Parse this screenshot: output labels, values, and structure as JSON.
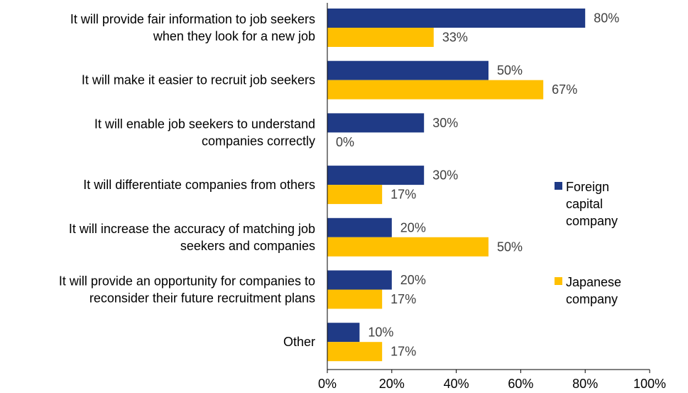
{
  "chart_data": {
    "type": "bar",
    "orientation": "horizontal",
    "categories": [
      [
        "It will provide fair information to job seekers",
        "when they look for a new job"
      ],
      [
        "It will make it easier to recruit job seekers"
      ],
      [
        "It will enable job seekers to understand",
        "companies correctly"
      ],
      [
        "It will differentiate companies from others"
      ],
      [
        "It will increase the accuracy of matching job",
        "seekers and companies"
      ],
      [
        "It will provide an opportunity for companies to",
        "reconsider their future recruitment plans"
      ],
      [
        "Other"
      ]
    ],
    "series": [
      {
        "name": [
          "Foreign",
          "capital",
          "company"
        ],
        "color": "#1f3a86",
        "values": [
          80,
          50,
          30,
          30,
          20,
          20,
          10
        ]
      },
      {
        "name": [
          "Japanese",
          "company"
        ],
        "color": "#ffc000",
        "values": [
          33,
          67,
          0,
          17,
          50,
          17,
          17
        ]
      }
    ],
    "value_suffix": "%",
    "xlim": [
      0,
      100
    ],
    "xticks": [
      "0%",
      "20%",
      "40%",
      "60%",
      "80%",
      "100%"
    ],
    "grid": false,
    "legend_position": "right"
  }
}
